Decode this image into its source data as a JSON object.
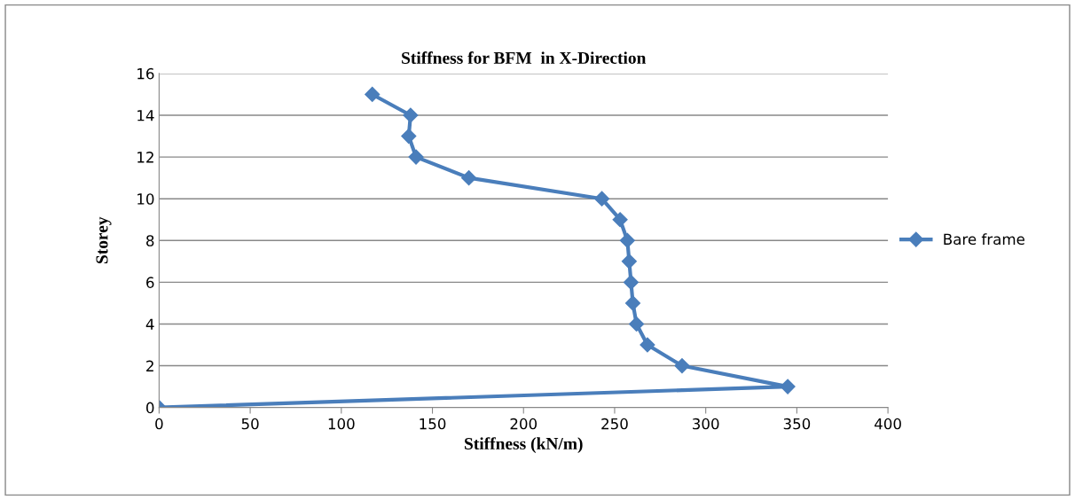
{
  "chart_data": {
    "type": "line",
    "title": "Stiffness for BFM  in X-Direction",
    "xlabel": "Stiffness (kN/m)",
    "ylabel": "Storey",
    "series": [
      {
        "name": "Bare frame",
        "color": "#4a7ebb",
        "x": [
          0,
          345,
          287,
          268,
          262,
          260,
          259,
          258,
          257,
          253,
          243,
          170,
          141,
          137,
          138,
          117
        ],
        "values": [
          0,
          1,
          2,
          3,
          4,
          5,
          6,
          7,
          8,
          9,
          10,
          11,
          12,
          13,
          14,
          15
        ]
      }
    ],
    "xlim": [
      0,
      400
    ],
    "xticks": [
      0,
      50,
      100,
      150,
      200,
      250,
      300,
      350,
      400
    ],
    "ylim": [
      0,
      16
    ],
    "yticks": [
      0,
      2,
      4,
      6,
      8,
      10,
      12,
      14,
      16
    ],
    "grid": "y",
    "legend": "right",
    "marker": "diamond",
    "line_style": "solid"
  }
}
